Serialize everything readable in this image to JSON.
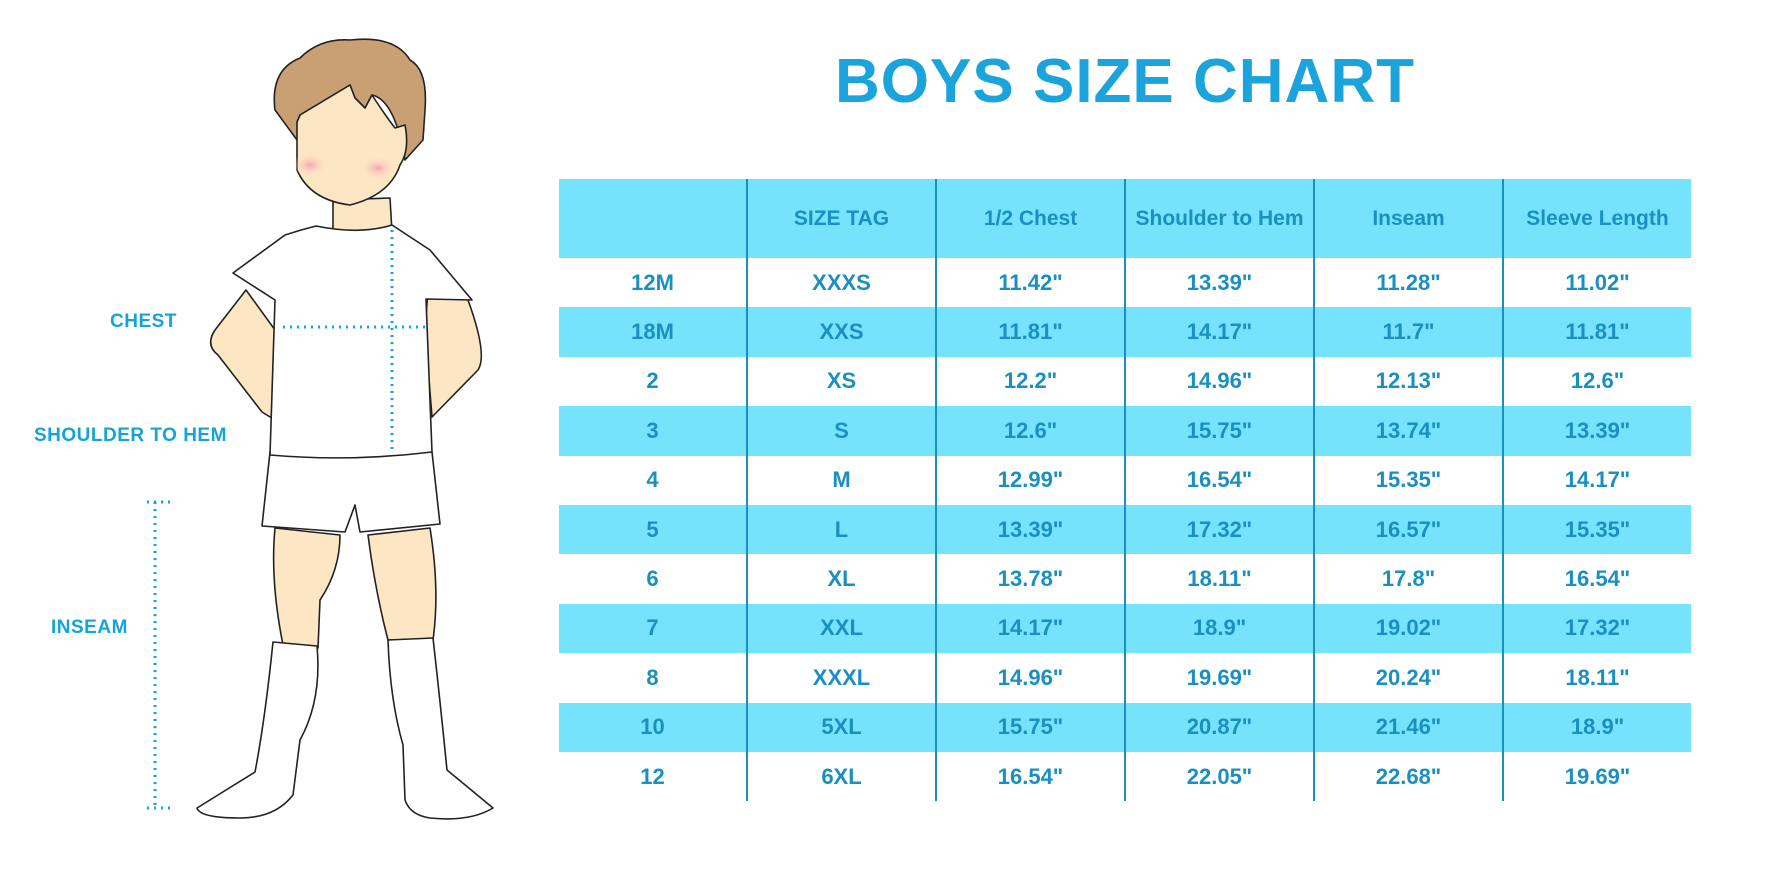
{
  "title": "BOYS SIZE CHART",
  "colors": {
    "accent": "#1ba3dc",
    "header_bg": "#76e3fd",
    "table_text": "#1a8fc0"
  },
  "figure": {
    "labels": {
      "chest": "CHEST",
      "shoulder_to_hem": "SHOULDER TO HEM",
      "inseam": "INSEAM"
    }
  },
  "table": {
    "headers": [
      "",
      "SIZE TAG",
      "1/2 Chest",
      "Shoulder to Hem",
      "Inseam",
      "Sleeve Length"
    ],
    "rows": [
      [
        "12M",
        "XXXS",
        "11.42\"",
        "13.39\"",
        "11.28\"",
        "11.02\""
      ],
      [
        "18M",
        "XXS",
        "11.81\"",
        "14.17\"",
        "11.7\"",
        "11.81\""
      ],
      [
        "2",
        "XS",
        "12.2\"",
        "14.96\"",
        "12.13\"",
        "12.6\""
      ],
      [
        "3",
        "S",
        "12.6\"",
        "15.75\"",
        "13.74\"",
        "13.39\""
      ],
      [
        "4",
        "M",
        "12.99\"",
        "16.54\"",
        "15.35\"",
        "14.17\""
      ],
      [
        "5",
        "L",
        "13.39\"",
        "17.32\"",
        "16.57\"",
        "15.35\""
      ],
      [
        "6",
        "XL",
        "13.78\"",
        "18.11\"",
        "17.8\"",
        "16.54\""
      ],
      [
        "7",
        "XXL",
        "14.17\"",
        "18.9\"",
        "19.02\"",
        "17.32\""
      ],
      [
        "8",
        "XXXL",
        "14.96\"",
        "19.69\"",
        "20.24\"",
        "18.11\""
      ],
      [
        "10",
        "5XL",
        "15.75\"",
        "20.87\"",
        "21.46\"",
        "18.9\""
      ],
      [
        "12",
        "6XL",
        "16.54\"",
        "22.05\"",
        "22.68\"",
        "19.69\""
      ]
    ]
  }
}
